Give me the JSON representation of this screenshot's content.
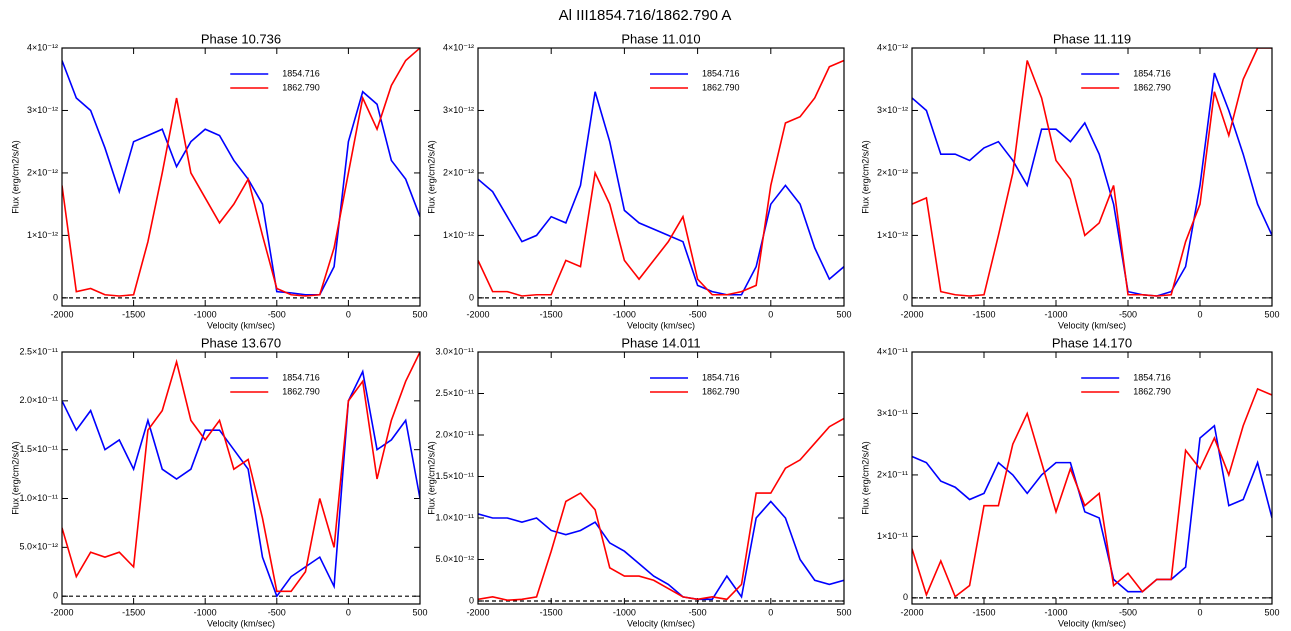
{
  "title": "Al III1854.716/1862.790 A",
  "chart_data": [
    {
      "type": "line",
      "title": "Phase 10.736",
      "x_label": "Velocity (km/sec)",
      "y_label": "Flux (erg/cm2/s/A)",
      "legend": "upper right",
      "reference_line": 0,
      "x": [
        -2000,
        -1900,
        -1800,
        -1700,
        -1600,
        -1500,
        -1400,
        -1300,
        -1200,
        -1100,
        -1000,
        -900,
        -800,
        -700,
        -600,
        -500,
        -400,
        -300,
        -200,
        -100,
        0,
        100,
        200,
        300,
        400,
        500
      ],
      "series": [
        {
          "name": "1854.716",
          "color": "#0000ff",
          "values": [
            3.8e-12,
            3.2e-12,
            3e-12,
            2.4e-12,
            1.7e-12,
            2.5e-12,
            2.6e-12,
            2.7e-12,
            2.1e-12,
            2.5e-12,
            2.7e-12,
            2.6e-12,
            2.2e-12,
            1.9e-12,
            1.5e-12,
            1e-13,
            8e-14,
            5e-14,
            5e-14,
            5e-13,
            2.5e-12,
            3.3e-12,
            3.1e-12,
            2.2e-12,
            1.9e-12,
            1.3e-12
          ]
        },
        {
          "name": "1862.790",
          "color": "#ff0000",
          "values": [
            1.8e-12,
            1e-13,
            1.5e-13,
            5e-14,
            3e-14,
            5e-14,
            9e-13,
            2e-12,
            3.2e-12,
            2e-12,
            1.6e-12,
            1.2e-12,
            1.5e-12,
            1.9e-12,
            1e-12,
            1.5e-13,
            5e-14,
            3e-14,
            5e-14,
            8e-13,
            2e-12,
            3.2e-12,
            2.7e-12,
            3.4e-12,
            3.8e-12,
            4e-12
          ]
        }
      ],
      "xlim": [
        -2000,
        500
      ],
      "xticks": [
        -2000,
        -1500,
        -1000,
        -500,
        0,
        500
      ],
      "ylim": [
        -1.3e-13,
        4e-12
      ],
      "yticks": [
        0,
        {
          "value": 1e-12,
          "label": "1×10⁻¹²"
        },
        {
          "value": 2e-12,
          "label": "2×10⁻¹²"
        },
        {
          "value": 3e-12,
          "label": "3×10⁻¹²"
        },
        {
          "value": 4e-12,
          "label": "4×10⁻¹²"
        }
      ]
    },
    {
      "type": "line",
      "title": "Phase 11.010",
      "x_label": "Velocity (km/sec)",
      "y_label": "Flux (erg/cm2/s/A)",
      "legend": "upper right",
      "reference_line": 0,
      "x": [
        -2000,
        -1900,
        -1800,
        -1700,
        -1600,
        -1500,
        -1400,
        -1300,
        -1200,
        -1100,
        -1000,
        -900,
        -800,
        -700,
        -600,
        -500,
        -400,
        -300,
        -200,
        -100,
        0,
        100,
        200,
        300,
        400,
        500
      ],
      "series": [
        {
          "name": "1854.716",
          "color": "#0000ff",
          "values": [
            1.9e-12,
            1.7e-12,
            1.3e-12,
            9e-13,
            1e-12,
            1.3e-12,
            1.2e-12,
            1.8e-12,
            3.3e-12,
            2.5e-12,
            1.4e-12,
            1.2e-12,
            1.1e-12,
            1e-12,
            9e-13,
            2e-13,
            1e-13,
            5e-14,
            5e-14,
            5e-13,
            1.5e-12,
            1.8e-12,
            1.5e-12,
            8e-13,
            3e-13,
            5e-13
          ]
        },
        {
          "name": "1862.790",
          "color": "#ff0000",
          "values": [
            6e-13,
            1e-13,
            1e-13,
            3e-14,
            5e-14,
            5e-14,
            6e-13,
            5e-13,
            2e-12,
            1.5e-12,
            6e-13,
            3e-13,
            6e-13,
            9e-13,
            1.3e-12,
            3e-13,
            5e-14,
            5e-14,
            1e-13,
            2e-13,
            1.8e-12,
            2.8e-12,
            2.9e-12,
            3.2e-12,
            3.7e-12,
            3.8e-12
          ]
        }
      ],
      "xlim": [
        -2000,
        500
      ],
      "xticks": [
        -2000,
        -1500,
        -1000,
        -500,
        0,
        500
      ],
      "ylim": [
        -1.3e-13,
        4e-12
      ],
      "yticks": [
        0,
        {
          "value": 1e-12,
          "label": "1×10⁻¹²"
        },
        {
          "value": 2e-12,
          "label": "2×10⁻¹²"
        },
        {
          "value": 3e-12,
          "label": "3×10⁻¹²"
        },
        {
          "value": 4e-12,
          "label": "4×10⁻¹²"
        }
      ]
    },
    {
      "type": "line",
      "title": "Phase 11.119",
      "x_label": "Velocity (km/sec)",
      "y_label": "Flux (erg/cm2/s/A)",
      "legend": "upper right",
      "reference_line": 0,
      "x": [
        -2000,
        -1900,
        -1800,
        -1700,
        -1600,
        -1500,
        -1400,
        -1300,
        -1200,
        -1100,
        -1000,
        -900,
        -800,
        -700,
        -600,
        -500,
        -400,
        -300,
        -200,
        -100,
        0,
        100,
        200,
        300,
        400,
        500
      ],
      "series": [
        {
          "name": "1854.716",
          "color": "#0000ff",
          "values": [
            3.2e-12,
            3e-12,
            2.3e-12,
            2.3e-12,
            2.2e-12,
            2.4e-12,
            2.5e-12,
            2.2e-12,
            1.8e-12,
            2.7e-12,
            2.7e-12,
            2.5e-12,
            2.8e-12,
            2.3e-12,
            1.5e-12,
            1e-13,
            5e-14,
            3e-14,
            1e-13,
            5e-13,
            1.8e-12,
            3.6e-12,
            3e-12,
            2.3e-12,
            1.5e-12,
            1e-12
          ]
        },
        {
          "name": "1862.790",
          "color": "#ff0000",
          "values": [
            1.5e-12,
            1.6e-12,
            1e-13,
            5e-14,
            3e-14,
            5e-14,
            1e-12,
            2e-12,
            3.8e-12,
            3.2e-12,
            2.2e-12,
            1.9e-12,
            1e-12,
            1.2e-12,
            1.8e-12,
            5e-14,
            5e-14,
            3e-14,
            5e-14,
            9e-13,
            1.5e-12,
            3.3e-12,
            2.6e-12,
            3.5e-12,
            4e-12,
            4e-12
          ]
        }
      ],
      "xlim": [
        -2000,
        500
      ],
      "xticks": [
        -2000,
        -1500,
        -1000,
        -500,
        0,
        500
      ],
      "ylim": [
        -1.3e-13,
        4e-12
      ],
      "yticks": [
        0,
        {
          "value": 1e-12,
          "label": "1×10⁻¹²"
        },
        {
          "value": 2e-12,
          "label": "2×10⁻¹²"
        },
        {
          "value": 3e-12,
          "label": "3×10⁻¹²"
        },
        {
          "value": 4e-12,
          "label": "4×10⁻¹²"
        }
      ]
    },
    {
      "type": "line",
      "title": "Phase 13.670",
      "x_label": "Velocity (km/sec)",
      "y_label": "Flux (erg/cm2/s/A)",
      "legend": "upper right",
      "reference_line": 0,
      "x": [
        -2000,
        -1900,
        -1800,
        -1700,
        -1600,
        -1500,
        -1400,
        -1300,
        -1200,
        -1100,
        -1000,
        -900,
        -800,
        -700,
        -600,
        -500,
        -400,
        -300,
        -200,
        -100,
        0,
        100,
        200,
        300,
        400,
        500
      ],
      "series": [
        {
          "name": "1854.716",
          "color": "#0000ff",
          "values": [
            2e-11,
            1.7e-11,
            1.9e-11,
            1.5e-11,
            1.6e-11,
            1.3e-11,
            1.8e-11,
            1.3e-11,
            1.2e-11,
            1.3e-11,
            1.7e-11,
            1.7e-11,
            1.5e-11,
            1.3e-11,
            4e-12,
            0,
            2e-12,
            3e-12,
            4e-12,
            1e-12,
            2e-11,
            2.3e-11,
            1.5e-11,
            1.6e-11,
            1.8e-11,
            1e-11
          ]
        },
        {
          "name": "1862.790",
          "color": "#ff0000",
          "values": [
            7e-12,
            2e-12,
            4.5e-12,
            4e-12,
            4.5e-12,
            3e-12,
            1.7e-11,
            1.9e-11,
            2.4e-11,
            1.8e-11,
            1.6e-11,
            1.8e-11,
            1.3e-11,
            1.4e-11,
            8e-12,
            5e-13,
            5e-13,
            2.5e-12,
            1e-11,
            5e-12,
            2e-11,
            2.2e-11,
            1.2e-11,
            1.8e-11,
            2.2e-11,
            2.5e-11
          ]
        }
      ],
      "xlim": [
        -2000,
        500
      ],
      "xticks": [
        -2000,
        -1500,
        -1000,
        -500,
        0,
        500
      ],
      "ylim": [
        -8e-13,
        2.5e-11
      ],
      "yticks": [
        0,
        {
          "value": 5e-12,
          "label": "5.0×10⁻¹²"
        },
        {
          "value": 1e-11,
          "label": "1.0×10⁻¹¹"
        },
        {
          "value": 1.5e-11,
          "label": "1.5×10⁻¹¹"
        },
        {
          "value": 2e-11,
          "label": "2.0×10⁻¹¹"
        },
        {
          "value": 2.5e-11,
          "label": "2.5×10⁻¹¹"
        }
      ]
    },
    {
      "type": "line",
      "title": "Phase 14.011",
      "x_label": "Velocity (km/sec)",
      "y_label": "Flux (erg/cm2/s/A)",
      "legend": "upper right",
      "reference_line": 0,
      "x": [
        -2000,
        -1900,
        -1800,
        -1700,
        -1600,
        -1500,
        -1400,
        -1300,
        -1200,
        -1100,
        -1000,
        -900,
        -800,
        -700,
        -600,
        -500,
        -400,
        -300,
        -200,
        -100,
        0,
        100,
        200,
        300,
        400,
        500
      ],
      "series": [
        {
          "name": "1854.716",
          "color": "#0000ff",
          "values": [
            1.05e-11,
            1e-11,
            1e-11,
            9.5e-12,
            1e-11,
            8.5e-12,
            8e-12,
            8.5e-12,
            9.5e-12,
            7e-12,
            6e-12,
            4.5e-12,
            3e-12,
            2e-12,
            5e-13,
            2e-13,
            2e-13,
            3e-12,
            5e-13,
            1e-11,
            1.2e-11,
            1e-11,
            5e-12,
            2.5e-12,
            2e-12,
            2.5e-12
          ]
        },
        {
          "name": "1862.790",
          "color": "#ff0000",
          "values": [
            2e-13,
            5e-13,
            1e-13,
            2e-13,
            5e-13,
            6e-12,
            1.2e-11,
            1.3e-11,
            1.1e-11,
            4e-12,
            3e-12,
            3e-12,
            2.5e-12,
            1.5e-12,
            5e-13,
            2e-13,
            5e-13,
            2e-13,
            2e-12,
            1.3e-11,
            1.3e-11,
            1.6e-11,
            1.7e-11,
            1.9e-11,
            2.1e-11,
            2.2e-11
          ]
        }
      ],
      "xlim": [
        -2000,
        500
      ],
      "xticks": [
        -2000,
        -1500,
        -1000,
        -500,
        0,
        500
      ],
      "ylim": [
        -3.6e-13,
        3e-11
      ],
      "yticks": [
        0,
        {
          "value": 5e-12,
          "label": "5.0×10⁻¹²"
        },
        {
          "value": 1e-11,
          "label": "1.0×10⁻¹¹"
        },
        {
          "value": 1.5e-11,
          "label": "1.5×10⁻¹¹"
        },
        {
          "value": 2e-11,
          "label": "2.0×10⁻¹¹"
        },
        {
          "value": 2.5e-11,
          "label": "2.5×10⁻¹¹"
        },
        {
          "value": 3e-11,
          "label": "3.0×10⁻¹¹"
        }
      ]
    },
    {
      "type": "line",
      "title": "Phase 14.170",
      "x_label": "Velocity (km/sec)",
      "y_label": "Flux (erg/cm2/s/A)",
      "legend": "upper right",
      "reference_line": 0,
      "x": [
        -2000,
        -1900,
        -1800,
        -1700,
        -1600,
        -1500,
        -1400,
        -1300,
        -1200,
        -1100,
        -1000,
        -900,
        -800,
        -700,
        -600,
        -500,
        -400,
        -300,
        -200,
        -100,
        0,
        100,
        200,
        300,
        400,
        500
      ],
      "series": [
        {
          "name": "1854.716",
          "color": "#0000ff",
          "values": [
            2.3e-11,
            2.2e-11,
            1.9e-11,
            1.8e-11,
            1.6e-11,
            1.7e-11,
            2.2e-11,
            2e-11,
            1.7e-11,
            2e-11,
            2.2e-11,
            2.2e-11,
            1.4e-11,
            1.3e-11,
            3e-12,
            1e-12,
            1e-12,
            3e-12,
            3e-12,
            5e-12,
            2.6e-11,
            2.8e-11,
            1.5e-11,
            1.6e-11,
            2.2e-11,
            1.3e-11
          ]
        },
        {
          "name": "1862.790",
          "color": "#ff0000",
          "values": [
            8e-12,
            5e-13,
            6e-12,
            2e-13,
            2e-12,
            1.5e-11,
            1.5e-11,
            2.5e-11,
            3e-11,
            2.2e-11,
            1.4e-11,
            2.1e-11,
            1.5e-11,
            1.7e-11,
            2e-12,
            4e-12,
            1e-12,
            3e-12,
            3e-12,
            2.4e-11,
            2.1e-11,
            2.6e-11,
            2e-11,
            2.8e-11,
            3.4e-11,
            3.3e-11
          ]
        }
      ],
      "xlim": [
        -2000,
        500
      ],
      "xticks": [
        -2000,
        -1500,
        -1000,
        -500,
        0,
        500
      ],
      "ylim": [
        -1e-12,
        4e-11
      ],
      "yticks": [
        0,
        {
          "value": 1e-11,
          "label": "1×10⁻¹¹"
        },
        {
          "value": 2e-11,
          "label": "2×10⁻¹¹"
        },
        {
          "value": 3e-11,
          "label": "3×10⁻¹¹"
        },
        {
          "value": 4e-11,
          "label": "4×10⁻¹¹"
        }
      ]
    }
  ]
}
